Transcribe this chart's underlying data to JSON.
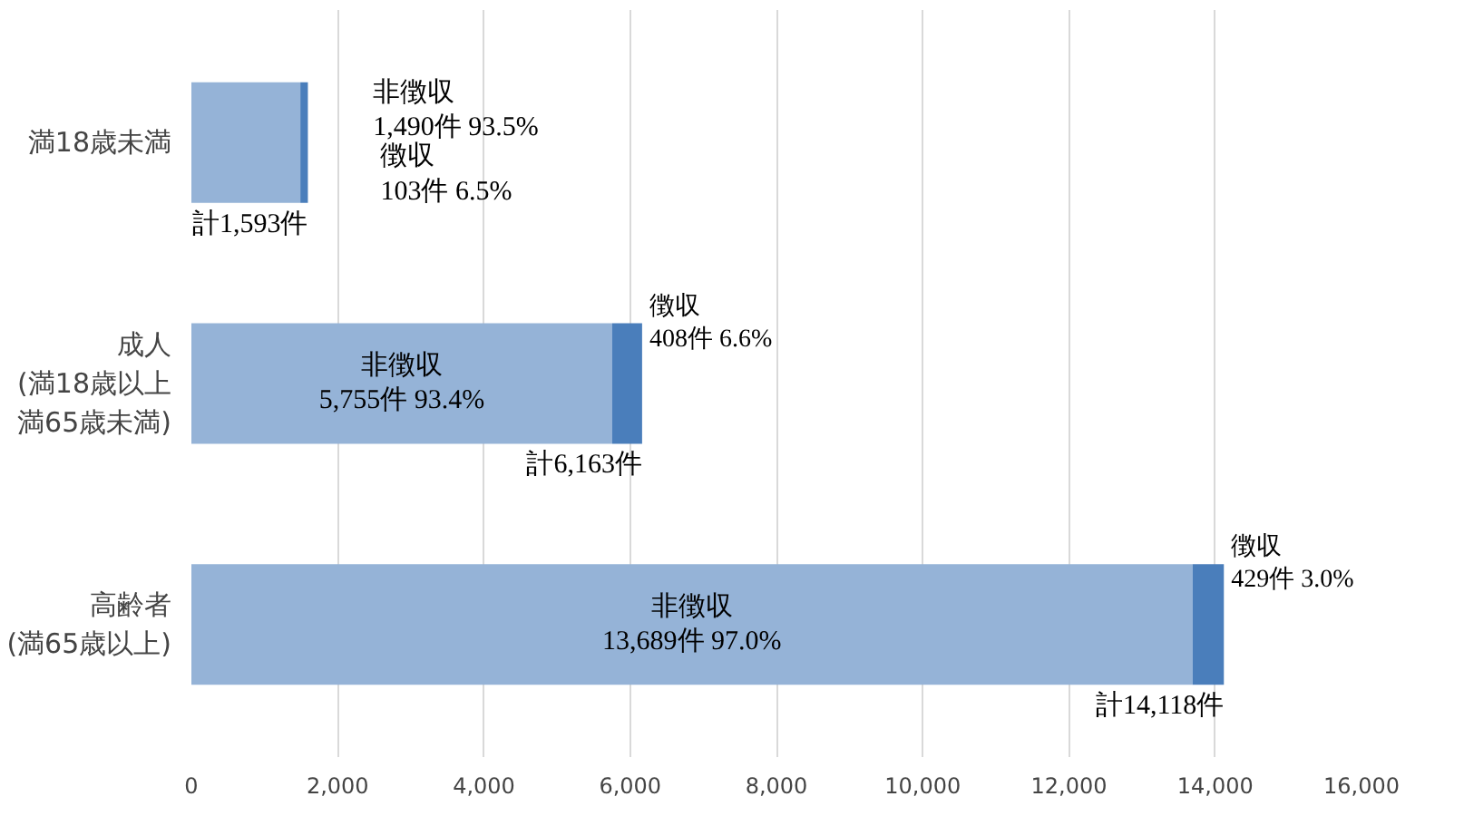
{
  "chart_data": {
    "type": "bar",
    "orientation": "horizontal",
    "stacked": true,
    "categories": [
      "満18歳未満",
      "成人(満18歳以上満65歳未満)",
      "高齢者(満65歳以上)"
    ],
    "series": [
      {
        "color": "#95b3d7",
        "values": [
          1490,
          5755,
          13689
        ],
        "value_labels": [
          "非徴収\n1,490件 93.5%",
          "非徴収\n5,755件 93.4%",
          "非徴収\n13,689件 97.0%"
        ]
      },
      {
        "color": "#4a7ebb",
        "values": [
          103,
          408,
          429
        ],
        "value_labels": [
          "徴収\n103件 6.5%",
          "徴収\n408件 6.6%",
          "徴収\n429件 3.0%"
        ]
      }
    ],
    "totals": [
      "計1,593件",
      "計6,163件",
      "計14,118件"
    ],
    "xlim": [
      0,
      16000
    ],
    "xticks": [
      0,
      {
        "value": 2000,
        "label": "2,000"
      },
      {
        "value": 4000,
        "label": "4,000"
      },
      {
        "value": 6000,
        "label": "6,000"
      },
      {
        "value": 8000,
        "label": "8,000"
      },
      {
        "value": 10000,
        "label": "10,000"
      },
      {
        "value": 12000,
        "label": "12,000"
      },
      {
        "value": 14000,
        "label": "14,000"
      },
      {
        "value": 16000,
        "label": "16,000"
      }
    ],
    "grid": "x"
  }
}
